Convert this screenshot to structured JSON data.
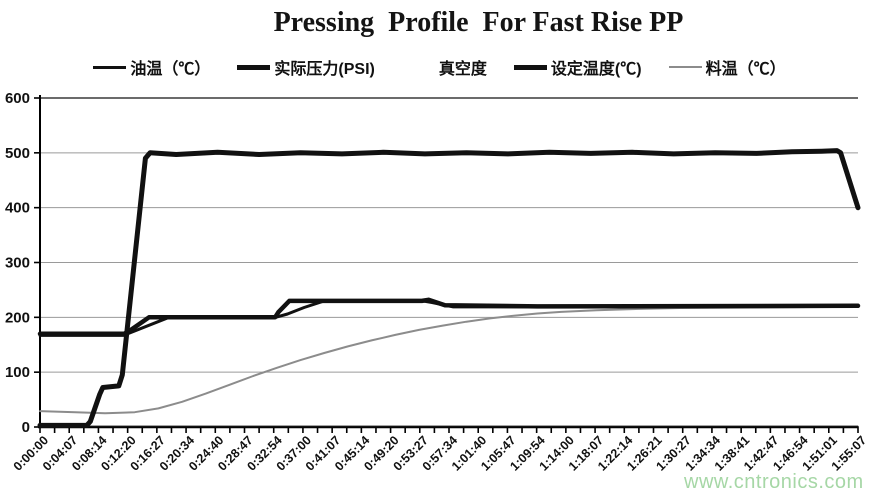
{
  "header": {
    "title": "Pressing  Profile  For Fast Rise PP"
  },
  "legend": {
    "items": [
      {
        "id": "oil-temp",
        "label": "油温（℃）",
        "marker_color": "#111111",
        "marker_height": 3,
        "marker_visible": true
      },
      {
        "id": "actual-pressure",
        "label": "实际压力(PSI)",
        "marker_color": "#111111",
        "marker_height": 5,
        "marker_visible": true
      },
      {
        "id": "vacuum",
        "label": "真空度",
        "marker_color": "#ffffff",
        "marker_height": 3,
        "marker_visible": false
      },
      {
        "id": "set-temp",
        "label": "设定温度(℃)",
        "marker_color": "#111111",
        "marker_height": 5,
        "marker_visible": true
      },
      {
        "id": "material-temp",
        "label": "料温（℃）",
        "marker_color": "#8c8c8c",
        "marker_height": 2,
        "marker_visible": true
      }
    ]
  },
  "watermark": {
    "text": "www.cntronics.com",
    "color": "#a6d7a6"
  },
  "colors": {
    "axis": "#000000",
    "gridline": "#9a9a9a",
    "top_border": "#3a3a3a",
    "series_black": "#111111",
    "series_gray": "#8c8c8c"
  },
  "chart_data": {
    "type": "line",
    "title": "Pressing Profile For Fast Rise PP",
    "xlabel": "",
    "ylabel": "",
    "grid": true,
    "legend_position": "top",
    "x_axis": {
      "unit": "h:mm:ss",
      "t_start_seconds": 0,
      "t_end_seconds": 6907,
      "minor_ticks": 57,
      "labels": [
        "0:00:00",
        "0:04:07",
        "0:08:14",
        "0:12:20",
        "0:16:27",
        "0:20:34",
        "0:24:40",
        "0:28:47",
        "0:32:54",
        "0:37:00",
        "0:41:07",
        "0:45:14",
        "0:49:20",
        "0:53:27",
        "0:57:34",
        "1:01:40",
        "1:05:47",
        "1:09:54",
        "1:14:00",
        "1:18:07",
        "1:22:14",
        "1:26:21",
        "1:30:27",
        "1:34:34",
        "1:38:41",
        "1:42:47",
        "1:46:54",
        "1:51:01",
        "1:55:07"
      ]
    },
    "y_axis": {
      "min": 0,
      "max": 600,
      "step": 100,
      "tick_labels": [
        "0",
        "100",
        "200",
        "300",
        "400",
        "500",
        "600"
      ]
    },
    "series": [
      {
        "name": "真空度",
        "key": "vacuum",
        "color": "#111111",
        "width": 1.5,
        "points": [
          [
            0,
            1
          ],
          [
            6907,
            1
          ]
        ]
      },
      {
        "name": "料温（℃）",
        "key": "material-temp",
        "color": "#8c8c8c",
        "width": 2,
        "points": [
          [
            0,
            29
          ],
          [
            300,
            27
          ],
          [
            550,
            25
          ],
          [
            800,
            27
          ],
          [
            1000,
            34
          ],
          [
            1200,
            46
          ],
          [
            1400,
            61
          ],
          [
            1600,
            77
          ],
          [
            1800,
            93
          ],
          [
            2000,
            108
          ],
          [
            2200,
            122
          ],
          [
            2400,
            135
          ],
          [
            2600,
            147
          ],
          [
            2800,
            158
          ],
          [
            3000,
            168
          ],
          [
            3200,
            177
          ],
          [
            3400,
            185
          ],
          [
            3600,
            192
          ],
          [
            3800,
            198
          ],
          [
            4000,
            203
          ],
          [
            4200,
            207
          ],
          [
            4400,
            210
          ],
          [
            4700,
            213
          ],
          [
            5000,
            215
          ],
          [
            5400,
            217
          ],
          [
            6000,
            218
          ],
          [
            6907,
            219
          ]
        ]
      },
      {
        "name": "油温（℃）",
        "key": "oil-temp",
        "color": "#111111",
        "width": 3,
        "points": [
          [
            0,
            167
          ],
          [
            705,
            167
          ],
          [
            1090,
            200
          ],
          [
            1990,
            200
          ],
          [
            2090,
            206
          ],
          [
            2230,
            218
          ],
          [
            2400,
            230
          ],
          [
            3230,
            230
          ],
          [
            3310,
            227
          ],
          [
            3490,
            219
          ],
          [
            4500,
            219
          ],
          [
            6907,
            220
          ]
        ]
      },
      {
        "name": "设定温度(℃)",
        "key": "set-temp",
        "color": "#111111",
        "width": 4.5,
        "points": [
          [
            0,
            170
          ],
          [
            710,
            170
          ],
          [
            760,
            176
          ],
          [
            920,
            200
          ],
          [
            1985,
            200
          ],
          [
            2015,
            210
          ],
          [
            2105,
            230
          ],
          [
            3225,
            230
          ],
          [
            3280,
            232
          ],
          [
            3420,
            222
          ],
          [
            4200,
            220
          ],
          [
            6907,
            221
          ]
        ]
      },
      {
        "name": "实际压力(PSI)",
        "key": "actual-pressure",
        "color": "#111111",
        "width": 5,
        "points": [
          [
            0,
            3
          ],
          [
            395,
            3
          ],
          [
            425,
            10
          ],
          [
            505,
            60
          ],
          [
            530,
            72
          ],
          [
            665,
            75
          ],
          [
            695,
            95
          ],
          [
            890,
            490
          ],
          [
            930,
            500
          ],
          [
            1150,
            497
          ],
          [
            1500,
            501
          ],
          [
            1850,
            497
          ],
          [
            2200,
            500
          ],
          [
            2550,
            498
          ],
          [
            2900,
            501
          ],
          [
            3250,
            498
          ],
          [
            3600,
            500
          ],
          [
            3950,
            498
          ],
          [
            4300,
            501
          ],
          [
            4650,
            499
          ],
          [
            5000,
            501
          ],
          [
            5350,
            498
          ],
          [
            5700,
            500
          ],
          [
            6050,
            499
          ],
          [
            6350,
            502
          ],
          [
            6600,
            503
          ],
          [
            6730,
            504
          ],
          [
            6760,
            500
          ],
          [
            6907,
            400
          ]
        ]
      }
    ]
  }
}
